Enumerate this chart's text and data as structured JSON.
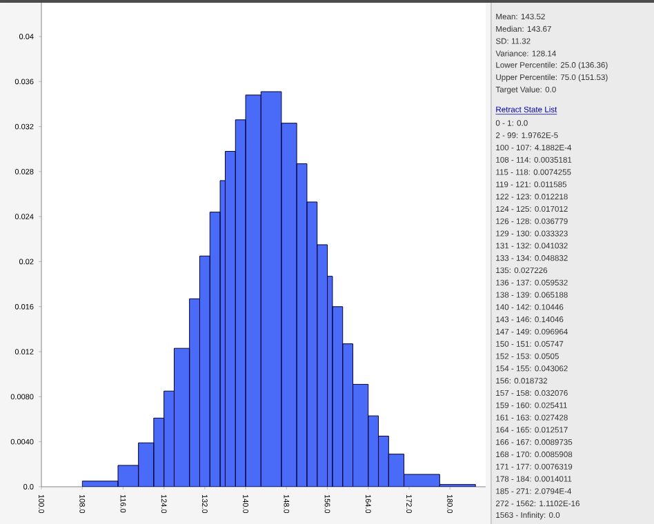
{
  "chart_data": {
    "type": "histogram",
    "bins": [
      108,
      115,
      119,
      122,
      124,
      126,
      129,
      131,
      133,
      135,
      136,
      138,
      140,
      143,
      147,
      150,
      152,
      154,
      156,
      157,
      159,
      161,
      164,
      166,
      168,
      171,
      178,
      185
    ],
    "values": [
      0.0005,
      0.0019,
      0.0039,
      0.0061,
      0.0085,
      0.0123,
      0.0167,
      0.0205,
      0.0244,
      0.0272,
      0.0298,
      0.0326,
      0.0348,
      0.0351,
      0.0323,
      0.0287,
      0.0253,
      0.0215,
      0.0187,
      0.016,
      0.0127,
      0.0091,
      0.0063,
      0.0045,
      0.0029,
      0.0011,
      0.0002
    ],
    "color": "#4a6af8",
    "xlim": [
      100,
      187
    ],
    "ylim": [
      0,
      0.043
    ],
    "xticks": [
      {
        "value": 100,
        "label": "100.0"
      },
      {
        "value": 108,
        "label": "108.0"
      },
      {
        "value": 116,
        "label": "116.0"
      },
      {
        "value": 124,
        "label": "124.0"
      },
      {
        "value": 132,
        "label": "132.0"
      },
      {
        "value": 140,
        "label": "140.0"
      },
      {
        "value": 148,
        "label": "148.0"
      },
      {
        "value": 156,
        "label": "156.0"
      },
      {
        "value": 164,
        "label": "164.0"
      },
      {
        "value": 172,
        "label": "172.0"
      },
      {
        "value": 180,
        "label": "180.0"
      }
    ],
    "yticks": [
      {
        "value": 0,
        "label": "0.0"
      },
      {
        "value": 0.004,
        "label": "0.0040"
      },
      {
        "value": 0.008,
        "label": "0.0080"
      },
      0.012,
      0.016,
      0.02,
      0.024,
      0.028,
      0.032,
      0.036,
      0.04
    ],
    "grid": false,
    "annotations": [
      "Mean: 143.52",
      "Median: 143.67",
      "SD: 11.32",
      "Variance: 128.14",
      "Lower Percentile: 25.0 (136.36)",
      "Upper Percentile: 75.0 (151.53)",
      "Target Value: 0.0",
      "Retract State List",
      "0 - 1: 0.0",
      "2 - 99: 1.9762E-5",
      "100 - 107: 4.1882E-4",
      "108 - 114: 0.0035181",
      "115 - 118: 0.0074255",
      "119 - 121: 0.011585",
      "122 - 123: 0.012218",
      "124 - 125: 0.017012",
      "126 - 128: 0.036779",
      "129 - 130: 0.033323",
      "131 - 132: 0.041032",
      "133 - 134: 0.048832",
      "135: 0.027226",
      "136 - 137: 0.059532",
      "138 - 139: 0.065188",
      "140 - 142: 0.10446",
      "143 - 146: 0.14046",
      "147 - 149: 0.096964",
      "150 - 151: 0.05747",
      "152 - 153: 0.0505",
      "154 - 155: 0.043062",
      "156: 0.018732",
      "157 - 158: 0.032076",
      "159 - 160: 0.025411",
      "161 - 163: 0.027428",
      "164 - 165: 0.012517",
      "166 - 167: 0.0089735",
      "168 - 170: 0.0085908",
      "171 - 177: 0.0076319",
      "178 - 184: 0.0014011",
      "185 - 271: 2.0794E-4",
      "272 - 1562: 1.1102E-16",
      "1563 - Infinity: 0.0"
    ]
  }
}
